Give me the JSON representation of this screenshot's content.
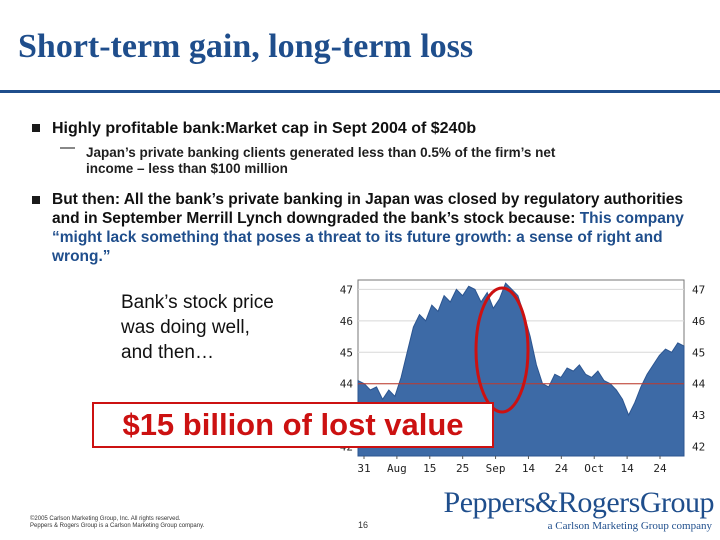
{
  "slide": {
    "title": "Short-term gain, long-term loss",
    "bullet1": "Highly profitable bank:Market cap in Sept 2004 of $240b",
    "sub_bullet1_line1": "Japan’s private banking clients generated less than  0.5% of the firm’s net",
    "sub_bullet1_line2": "income – less than $100 million",
    "bullet2_intro": "But then: All the bank’s private banking in Japan was closed by regulatory authorities and in September Merrill Lynch downgraded the bank’s stock because:",
    "bullet2_quote": "This company “might lack something that poses a threat to its future growth: a sense of right and wrong.”",
    "chart_note_line1": "Bank’s stock price",
    "chart_note_line2": "was doing well,",
    "chart_note_line3": "and then…",
    "callout": "$15 billion of lost value",
    "copyright_line1": "©2005 Carlson Marketing Group, Inc. All rights reserved.",
    "copyright_line2": "Peppers & Rogers Group is a Carlson Marketing Group company.",
    "page_number": "16",
    "logo_main": "Peppers&RogersGroup",
    "logo_sub": "a Carlson Marketing Group company"
  },
  "colors": {
    "title": "#1f4e8c",
    "area_fill": "#3d6aa6",
    "reference_line": "#c0392b",
    "highlight": "#cc1111"
  },
  "chart_data": {
    "type": "area",
    "x_ticks": [
      "31",
      "Aug",
      "15",
      "25",
      "Sep",
      "14",
      "24",
      "Oct",
      "14",
      "24"
    ],
    "y_ticks_left": [
      42,
      43,
      44,
      45,
      46,
      47
    ],
    "y_ticks_right": [
      42,
      43,
      44,
      45,
      46,
      47
    ],
    "ylim": [
      41.7,
      47.3
    ],
    "reference_line": 44,
    "highlight": "ellipse around the September peak and drop",
    "series": [
      {
        "values": [
          44.1,
          44.0,
          43.8,
          43.9,
          43.5,
          43.8,
          43.6,
          44.2,
          45.0,
          45.8,
          46.2,
          46.0,
          46.5,
          46.3,
          46.8,
          46.6,
          47.0,
          46.8,
          47.1,
          47.0,
          46.6,
          46.9,
          46.4,
          46.7,
          47.2,
          47.0,
          46.8,
          46.2,
          45.5,
          44.6,
          44.0,
          43.9,
          44.3,
          44.2,
          44.5,
          44.4,
          44.6,
          44.3,
          44.2,
          44.4,
          44.1,
          44.0,
          43.8,
          43.5,
          43.0,
          43.4,
          43.9,
          44.3,
          44.6,
          44.9,
          45.1,
          45.0,
          45.3,
          45.2
        ]
      }
    ]
  }
}
